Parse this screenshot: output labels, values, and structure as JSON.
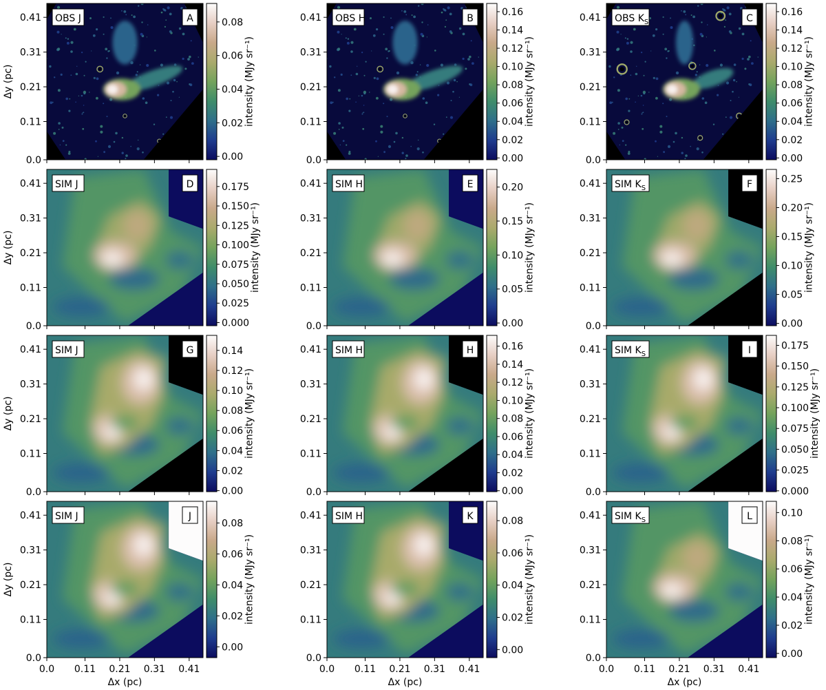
{
  "figure": {
    "panel_rows": 4,
    "panel_cols": 3,
    "x_axis_label": "Δx (pc)",
    "y_axis_label": "Δy (pc)",
    "colorbar_label": "intensity (MJy sr⁻¹)",
    "colormap": {
      "name": "gist_earth-like",
      "stops": [
        "#0c0c5e",
        "#1f3c8e",
        "#2f6f8a",
        "#3f8d6a",
        "#74a35c",
        "#aaaa6c",
        "#c9a98a",
        "#e7cfc4",
        "#fdfcfc"
      ]
    },
    "mask_color": "#000000"
  },
  "chart_data": [
    {
      "type": "heatmap",
      "row": 0,
      "col": 0,
      "title": "OBS J",
      "band_main": "OBS J",
      "band_sub": "",
      "panel_letter": "A",
      "kind": "obs",
      "pattern": "obs-j",
      "mask": "obs",
      "xlim": [
        0,
        0.45
      ],
      "ylim": [
        0,
        0.45
      ],
      "xticks": [
        0.0,
        0.11,
        0.21,
        0.31,
        0.41
      ],
      "yticks": [
        0.0,
        0.11,
        0.21,
        0.31,
        0.41
      ],
      "xtick_labels": [
        "0.0",
        "0.11",
        "0.21",
        "0.31",
        "0.41"
      ],
      "ytick_labels": [
        "0.0",
        "0.11",
        "0.21",
        "0.31",
        "0.41"
      ],
      "colorbar": {
        "min": -0.002,
        "max": 0.091,
        "ticks": [
          0.0,
          0.02,
          0.04,
          0.06,
          0.08
        ],
        "tick_labels": [
          "0.00",
          "0.02",
          "0.04",
          "0.06",
          "0.08"
        ]
      }
    },
    {
      "type": "heatmap",
      "row": 0,
      "col": 1,
      "title": "OBS H",
      "band_main": "OBS H",
      "band_sub": "",
      "panel_letter": "B",
      "kind": "obs",
      "pattern": "obs-h",
      "mask": "obs",
      "xlim": [
        0,
        0.45
      ],
      "ylim": [
        0,
        0.45
      ],
      "xticks": [
        0.0,
        0.11,
        0.21,
        0.31,
        0.41
      ],
      "yticks": [
        0.0,
        0.11,
        0.21,
        0.31,
        0.41
      ],
      "xtick_labels": [
        "0.0",
        "0.11",
        "0.21",
        "0.31",
        "0.41"
      ],
      "ytick_labels": [
        "0.0",
        "0.11",
        "0.21",
        "0.31",
        "0.41"
      ],
      "colorbar": {
        "min": -0.002,
        "max": 0.169,
        "ticks": [
          0.0,
          0.02,
          0.04,
          0.06,
          0.08,
          0.1,
          0.12,
          0.14,
          0.16
        ],
        "tick_labels": [
          "0.00",
          "0.02",
          "0.04",
          "0.06",
          "0.08",
          "0.10",
          "0.12",
          "0.14",
          "0.16"
        ]
      }
    },
    {
      "type": "heatmap",
      "row": 0,
      "col": 2,
      "title": "OBS KS",
      "band_main": "OBS K",
      "band_sub": "S",
      "panel_letter": "C",
      "kind": "obs",
      "pattern": "obs-k",
      "mask": "obs",
      "xlim": [
        0,
        0.45
      ],
      "ylim": [
        0,
        0.45
      ],
      "xticks": [
        0.0,
        0.11,
        0.21,
        0.31,
        0.41
      ],
      "yticks": [
        0.0,
        0.11,
        0.21,
        0.31,
        0.41
      ],
      "xtick_labels": [
        "0.0",
        "0.11",
        "0.21",
        "0.31",
        "0.41"
      ],
      "ytick_labels": [
        "0.0",
        "0.11",
        "0.21",
        "0.31",
        "0.41"
      ],
      "colorbar": {
        "min": -0.002,
        "max": 0.169,
        "ticks": [
          0.0,
          0.02,
          0.04,
          0.06,
          0.08,
          0.1,
          0.12,
          0.14,
          0.16
        ],
        "tick_labels": [
          "0.00",
          "0.02",
          "0.04",
          "0.06",
          "0.08",
          "0.10",
          "0.12",
          "0.14",
          "0.16"
        ]
      }
    },
    {
      "type": "heatmap",
      "row": 1,
      "col": 0,
      "title": "SIM J",
      "band_main": "SIM J",
      "band_sub": "",
      "panel_letter": "D",
      "kind": "sim",
      "pattern": "sim-compact",
      "mask": "navy",
      "xlim": [
        0,
        0.45
      ],
      "ylim": [
        0,
        0.45
      ],
      "xticks": [
        0.0,
        0.11,
        0.21,
        0.31,
        0.41
      ],
      "yticks": [
        0.0,
        0.11,
        0.21,
        0.31,
        0.41
      ],
      "xtick_labels": [
        "0.0",
        "0.11",
        "0.21",
        "0.31",
        "0.41"
      ],
      "ytick_labels": [
        "0.0",
        "0.11",
        "0.21",
        "0.31",
        "0.41"
      ],
      "colorbar": {
        "min": -0.004,
        "max": 0.197,
        "ticks": [
          0.0,
          0.025,
          0.05,
          0.075,
          0.1,
          0.125,
          0.15,
          0.175
        ],
        "tick_labels": [
          "0.000",
          "0.025",
          "0.050",
          "0.075",
          "0.100",
          "0.125",
          "0.150",
          "0.175"
        ]
      }
    },
    {
      "type": "heatmap",
      "row": 1,
      "col": 1,
      "title": "SIM H",
      "band_main": "SIM H",
      "band_sub": "",
      "panel_letter": "E",
      "kind": "sim",
      "pattern": "sim-compact",
      "mask": "navy",
      "xlim": [
        0,
        0.45
      ],
      "ylim": [
        0,
        0.45
      ],
      "xticks": [
        0.0,
        0.11,
        0.21,
        0.31,
        0.41
      ],
      "yticks": [
        0.0,
        0.11,
        0.21,
        0.31,
        0.41
      ],
      "xtick_labels": [
        "0.0",
        "0.11",
        "0.21",
        "0.31",
        "0.41"
      ],
      "ytick_labels": [
        "0.0",
        "0.11",
        "0.21",
        "0.31",
        "0.41"
      ],
      "colorbar": {
        "min": -0.004,
        "max": 0.226,
        "ticks": [
          0.0,
          0.05,
          0.1,
          0.15,
          0.2
        ],
        "tick_labels": [
          "0.00",
          "0.05",
          "0.10",
          "0.15",
          "0.20"
        ]
      }
    },
    {
      "type": "heatmap",
      "row": 1,
      "col": 2,
      "title": "SIM KS",
      "band_main": "SIM K",
      "band_sub": "S",
      "panel_letter": "F",
      "kind": "sim",
      "pattern": "sim-compact",
      "mask": "black",
      "xlim": [
        0,
        0.45
      ],
      "ylim": [
        0,
        0.45
      ],
      "xticks": [
        0.0,
        0.11,
        0.21,
        0.31,
        0.41
      ],
      "yticks": [
        0.0,
        0.11,
        0.21,
        0.31,
        0.41
      ],
      "xtick_labels": [
        "0.0",
        "0.11",
        "0.21",
        "0.31",
        "0.41"
      ],
      "ytick_labels": [
        "0.0",
        "0.11",
        "0.21",
        "0.31",
        "0.41"
      ],
      "colorbar": {
        "min": -0.004,
        "max": 0.266,
        "ticks": [
          0.0,
          0.05,
          0.1,
          0.15,
          0.2,
          0.25
        ],
        "tick_labels": [
          "0.00",
          "0.05",
          "0.10",
          "0.15",
          "0.20",
          "0.25"
        ]
      }
    },
    {
      "type": "heatmap",
      "row": 2,
      "col": 0,
      "title": "SIM J",
      "band_main": "SIM J",
      "band_sub": "",
      "panel_letter": "G",
      "kind": "sim",
      "pattern": "sim-extended",
      "mask": "black",
      "xlim": [
        0,
        0.45
      ],
      "ylim": [
        0,
        0.45
      ],
      "xticks": [
        0.0,
        0.11,
        0.21,
        0.31,
        0.41
      ],
      "yticks": [
        0.0,
        0.11,
        0.21,
        0.31,
        0.41
      ],
      "xtick_labels": [
        "0.0",
        "0.11",
        "0.21",
        "0.31",
        "0.41"
      ],
      "ytick_labels": [
        "0.0",
        "0.11",
        "0.21",
        "0.31",
        "0.41"
      ],
      "colorbar": {
        "min": -0.001,
        "max": 0.155,
        "ticks": [
          0.0,
          0.02,
          0.04,
          0.06,
          0.08,
          0.1,
          0.12,
          0.14
        ],
        "tick_labels": [
          "0.00",
          "0.02",
          "0.04",
          "0.06",
          "0.08",
          "0.10",
          "0.12",
          "0.14"
        ]
      }
    },
    {
      "type": "heatmap",
      "row": 2,
      "col": 1,
      "title": "SIM H",
      "band_main": "SIM H",
      "band_sub": "",
      "panel_letter": "H",
      "kind": "sim",
      "pattern": "sim-extended",
      "mask": "black",
      "xlim": [
        0,
        0.45
      ],
      "ylim": [
        0,
        0.45
      ],
      "xticks": [
        0.0,
        0.11,
        0.21,
        0.31,
        0.41
      ],
      "yticks": [
        0.0,
        0.11,
        0.21,
        0.31,
        0.41
      ],
      "xtick_labels": [
        "0.0",
        "0.11",
        "0.21",
        "0.31",
        "0.41"
      ],
      "ytick_labels": [
        "0.0",
        "0.11",
        "0.21",
        "0.31",
        "0.41"
      ],
      "colorbar": {
        "min": -0.001,
        "max": 0.172,
        "ticks": [
          0.0,
          0.02,
          0.04,
          0.06,
          0.08,
          0.1,
          0.12,
          0.14,
          0.16
        ],
        "tick_labels": [
          "0.00",
          "0.02",
          "0.04",
          "0.06",
          "0.08",
          "0.10",
          "0.12",
          "0.14",
          "0.16"
        ]
      }
    },
    {
      "type": "heatmap",
      "row": 2,
      "col": 2,
      "title": "SIM KS",
      "band_main": "SIM K",
      "band_sub": "S",
      "panel_letter": "I",
      "kind": "sim",
      "pattern": "sim-extended",
      "mask": "black",
      "xlim": [
        0,
        0.45
      ],
      "ylim": [
        0,
        0.45
      ],
      "xticks": [
        0.0,
        0.11,
        0.21,
        0.31,
        0.41
      ],
      "yticks": [
        0.0,
        0.11,
        0.21,
        0.31,
        0.41
      ],
      "xtick_labels": [
        "0.0",
        "0.11",
        "0.21",
        "0.31",
        "0.41"
      ],
      "ytick_labels": [
        "0.0",
        "0.11",
        "0.21",
        "0.31",
        "0.41"
      ],
      "colorbar": {
        "min": -0.001,
        "max": 0.187,
        "ticks": [
          0.0,
          0.025,
          0.05,
          0.075,
          0.1,
          0.125,
          0.15,
          0.175
        ],
        "tick_labels": [
          "0.000",
          "0.025",
          "0.050",
          "0.075",
          "0.100",
          "0.125",
          "0.150",
          "0.175"
        ]
      }
    },
    {
      "type": "heatmap",
      "row": 3,
      "col": 0,
      "title": "SIM J",
      "band_main": "SIM J",
      "band_sub": "",
      "panel_letter": "J",
      "kind": "sim",
      "pattern": "sim-extended",
      "mask": "white",
      "xlim": [
        0,
        0.45
      ],
      "ylim": [
        0,
        0.45
      ],
      "xticks": [
        0.0,
        0.11,
        0.21,
        0.31,
        0.41
      ],
      "yticks": [
        0.0,
        0.11,
        0.21,
        0.31,
        0.41
      ],
      "xtick_labels": [
        "0.0",
        "0.11",
        "0.21",
        "0.31",
        "0.41"
      ],
      "ytick_labels": [
        "0.0",
        "0.11",
        "0.21",
        "0.31",
        "0.41"
      ],
      "colorbar": {
        "min": -0.007,
        "max": 0.094,
        "ticks": [
          0.0,
          0.02,
          0.04,
          0.06,
          0.08
        ],
        "tick_labels": [
          "0.00",
          "0.02",
          "0.04",
          "0.06",
          "0.08"
        ]
      }
    },
    {
      "type": "heatmap",
      "row": 3,
      "col": 1,
      "title": "SIM H",
      "band_main": "SIM H",
      "band_sub": "",
      "panel_letter": "K",
      "kind": "sim",
      "pattern": "sim-extended",
      "mask": "navy",
      "xlim": [
        0,
        0.45
      ],
      "ylim": [
        0,
        0.45
      ],
      "xticks": [
        0.0,
        0.11,
        0.21,
        0.31,
        0.41
      ],
      "yticks": [
        0.0,
        0.11,
        0.21,
        0.31,
        0.41
      ],
      "xtick_labels": [
        "0.0",
        "0.11",
        "0.21",
        "0.31",
        "0.41"
      ],
      "ytick_labels": [
        "0.0",
        "0.11",
        "0.21",
        "0.31",
        "0.41"
      ],
      "colorbar": {
        "min": -0.005,
        "max": 0.092,
        "ticks": [
          0.0,
          0.02,
          0.04,
          0.06,
          0.08
        ],
        "tick_labels": [
          "0.00",
          "0.02",
          "0.04",
          "0.06",
          "0.08"
        ]
      }
    },
    {
      "type": "heatmap",
      "row": 3,
      "col": 2,
      "title": "SIM KS",
      "band_main": "SIM K",
      "band_sub": "S",
      "panel_letter": "L",
      "kind": "sim",
      "pattern": "sim-compact",
      "mask": "white",
      "xlim": [
        0,
        0.45
      ],
      "ylim": [
        0,
        0.45
      ],
      "xticks": [
        0.0,
        0.11,
        0.21,
        0.31,
        0.41
      ],
      "yticks": [
        0.0,
        0.11,
        0.21,
        0.31,
        0.41
      ],
      "xtick_labels": [
        "0.0",
        "0.11",
        "0.21",
        "0.31",
        "0.41"
      ],
      "ytick_labels": [
        "0.0",
        "0.11",
        "0.21",
        "0.31",
        "0.41"
      ],
      "colorbar": {
        "min": -0.003,
        "max": 0.108,
        "ticks": [
          0.0,
          0.02,
          0.04,
          0.06,
          0.08,
          0.1
        ],
        "tick_labels": [
          "0.00",
          "0.02",
          "0.04",
          "0.06",
          "0.08",
          "0.10"
        ]
      }
    }
  ]
}
